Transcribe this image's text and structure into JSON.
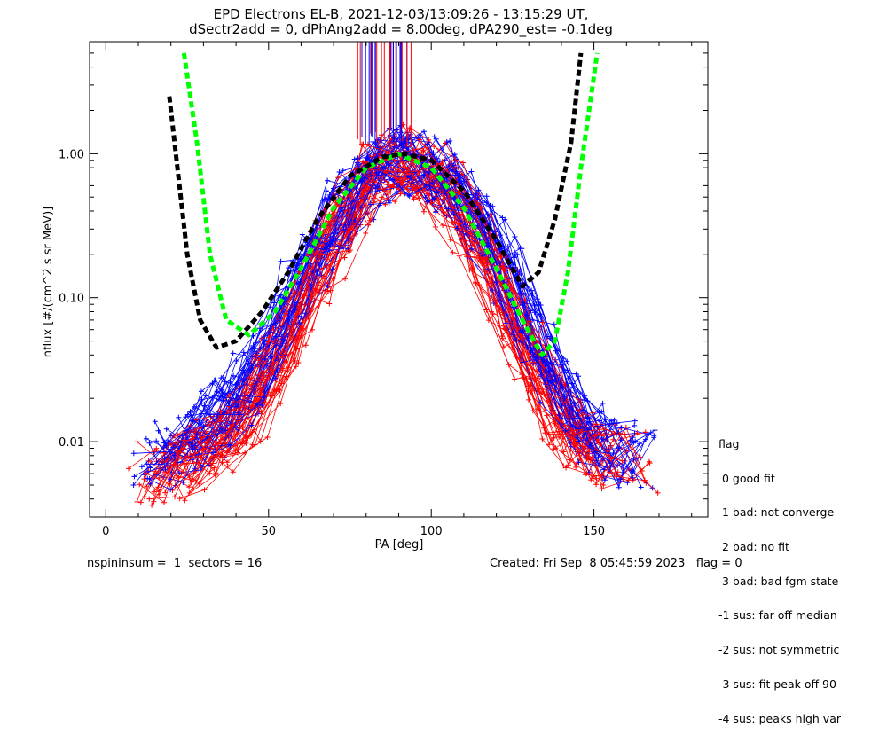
{
  "chart_data": {
    "type": "line",
    "title": "EPD Electrons EL-B, 2021-12-03/13:09:26 - 13:15:29 UT,",
    "subtitle": "dSectr2add = 0, dPhAng2add = 8.00deg, dPA290_est=  -0.1deg",
    "xlabel": "PA [deg]",
    "ylabel": "nflux [#/(cm^2 s sr MeV)]",
    "xlim": [
      -5,
      185
    ],
    "ylim": [
      0.003,
      6.0
    ],
    "yscale": "log",
    "xticks": [
      "0",
      "50",
      "100",
      "150"
    ],
    "yticks": [
      "0.01",
      "0.10",
      "1.00"
    ],
    "series": [
      {
        "color": "#ff0000",
        "x": [
          20,
          30,
          40,
          50,
          60,
          70,
          80,
          90,
          100,
          110,
          120,
          130,
          140,
          150,
          160
        ],
        "y": [
          0.006,
          0.008,
          0.012,
          0.025,
          0.08,
          0.25,
          0.6,
          0.95,
          0.75,
          0.4,
          0.15,
          0.04,
          0.015,
          0.009,
          0.007
        ]
      },
      {
        "color": "#0000ff",
        "x": [
          20,
          30,
          40,
          50,
          60,
          70,
          80,
          90,
          100,
          110,
          120,
          130,
          140,
          150,
          160
        ],
        "y": [
          0.008,
          0.012,
          0.02,
          0.045,
          0.13,
          0.35,
          0.7,
          0.95,
          0.8,
          0.45,
          0.2,
          0.06,
          0.02,
          0.01,
          0.008
        ]
      },
      {
        "color": "#00ff00",
        "style": "dashed",
        "x": [
          24,
          28,
          32,
          37,
          44,
          52,
          60,
          70,
          80,
          90,
          100,
          110,
          120,
          128,
          134,
          138,
          142,
          146,
          151
        ],
        "y": [
          5.0,
          1.2,
          0.2,
          0.07,
          0.055,
          0.08,
          0.16,
          0.42,
          0.8,
          1.0,
          0.8,
          0.42,
          0.16,
          0.07,
          0.04,
          0.05,
          0.15,
          0.8,
          5.0
        ]
      },
      {
        "color": "#000000",
        "style": "dashed",
        "x": [
          19.5,
          22,
          25,
          29,
          34,
          40,
          48,
          56,
          65,
          75,
          85,
          92,
          100,
          110,
          120,
          128,
          133,
          138,
          143,
          146
        ],
        "y": [
          2.5,
          0.8,
          0.2,
          0.07,
          0.045,
          0.05,
          0.08,
          0.15,
          0.35,
          0.7,
          0.95,
          1.0,
          0.9,
          0.55,
          0.25,
          0.12,
          0.15,
          0.35,
          1.2,
          5.0
        ]
      }
    ],
    "legend_position": "right, below plot"
  },
  "legend": {
    "title": "flag",
    "items": [
      " 0 good fit",
      " 1 bad: not converge",
      " 2 bad: no fit",
      " 3 bad: bad fgm state",
      "-1 sus: far off median",
      "-2 sus: not symmetric",
      "-3 sus: fit peak off 90",
      "-4 sus: peaks high var"
    ]
  },
  "footer": {
    "left": "nspininsum =  1  sectors = 16",
    "right": "Created: Fri Sep  8 05:45:59 2023   flag = 0"
  }
}
